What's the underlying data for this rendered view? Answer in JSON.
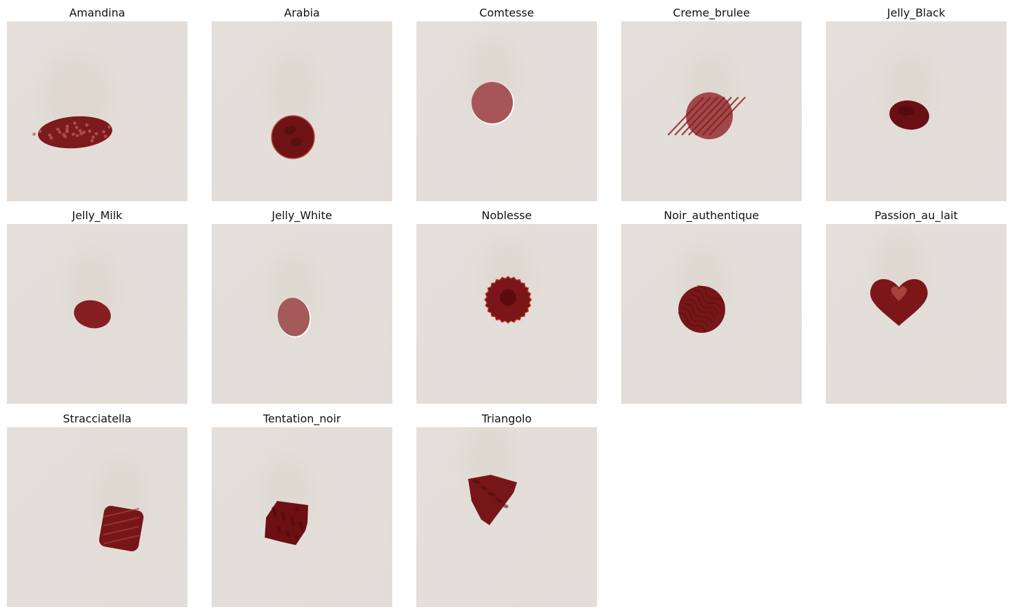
{
  "figure": {
    "items": [
      {
        "label": "Amandina",
        "shape": "oval-nut",
        "color": "#7c1a1e"
      },
      {
        "label": "Arabia",
        "shape": "round-bean",
        "color": "#6e1416"
      },
      {
        "label": "Comtesse",
        "shape": "round-smooth",
        "color": "#a65658"
      },
      {
        "label": "Creme_brulee",
        "shape": "round-striped",
        "color": "#a0484a"
      },
      {
        "label": "Jelly_Black",
        "shape": "small-oval-dark",
        "color": "#6a1015"
      },
      {
        "label": "Jelly_Milk",
        "shape": "small-oval",
        "color": "#861f22"
      },
      {
        "label": "Jelly_White",
        "shape": "small-oval-light",
        "color": "#a35a58"
      },
      {
        "label": "Noblesse",
        "shape": "round-scalloped",
        "color": "#7a1619"
      },
      {
        "label": "Noir_authentique",
        "shape": "round-wavy",
        "color": "#761619"
      },
      {
        "label": "Passion_au_lait",
        "shape": "heart",
        "color": "#7c1719"
      },
      {
        "label": "Stracciatella",
        "shape": "square-striped",
        "color": "#761619"
      },
      {
        "label": "Tentation_noir",
        "shape": "square-rough",
        "color": "#6c1013"
      },
      {
        "label": "Triangolo",
        "shape": "triangle",
        "color": "#761619"
      }
    ],
    "background_color": "#e2ddd8"
  }
}
